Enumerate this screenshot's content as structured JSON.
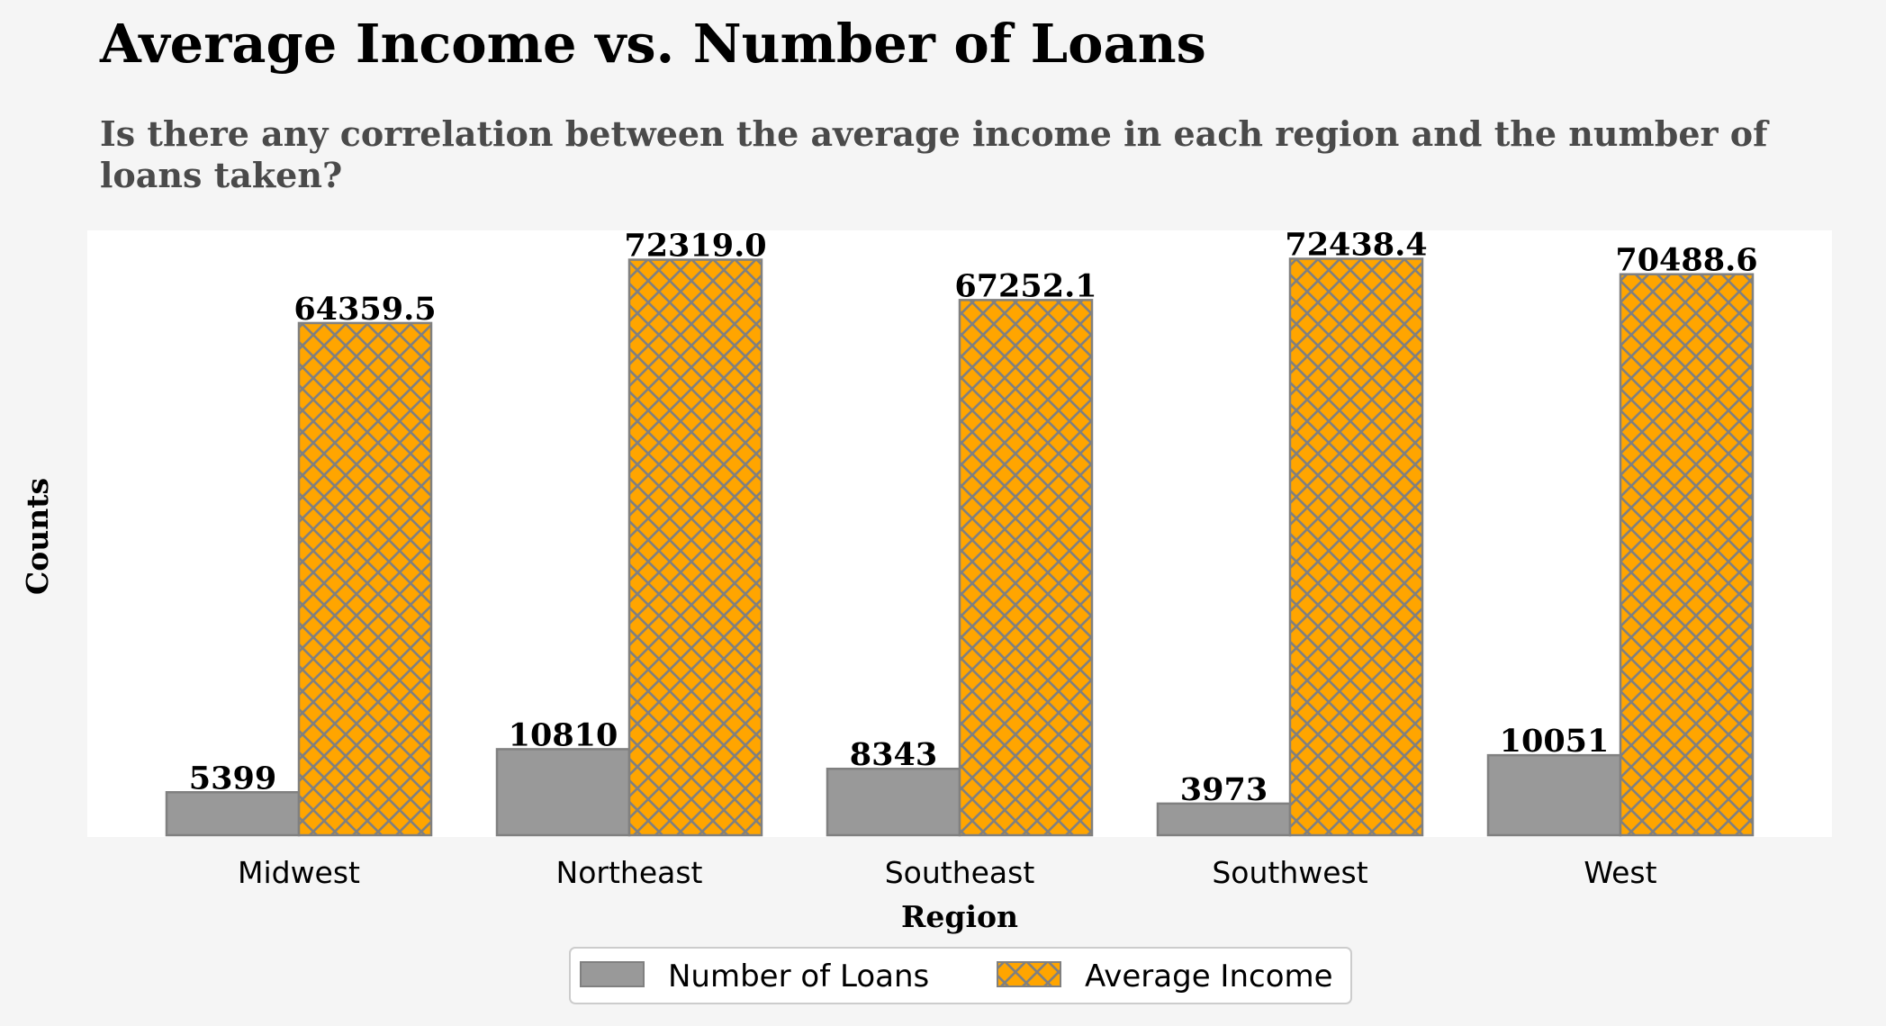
{
  "chart_data": {
    "type": "bar",
    "title": "Average Income vs. Number of Loans",
    "subtitle": "Is there any correlation between the average income in each region and the number of loans taken?",
    "xlabel": "Region",
    "ylabel": "Counts",
    "categories": [
      "Midwest",
      "Northeast",
      "Southeast",
      "Southwest",
      "West"
    ],
    "series": [
      {
        "name": "Number of Loans",
        "values": [
          5399,
          10810,
          8343,
          3973,
          10051
        ],
        "labels": [
          "5399",
          "10810",
          "8343",
          "3973",
          "10051"
        ],
        "color": "#999999",
        "hatch": false
      },
      {
        "name": "Average Income",
        "values": [
          64359.5,
          72319.0,
          67252.1,
          72438.4,
          70488.6
        ],
        "labels": [
          "64359.5",
          "72319.0",
          "67252.1",
          "72438.4",
          "70488.6"
        ],
        "color": "#ffa500",
        "hatch": true
      }
    ],
    "ylim": [
      0,
      76000
    ],
    "grid": false,
    "legend": "bottom-center",
    "edge_color": "#808080"
  }
}
